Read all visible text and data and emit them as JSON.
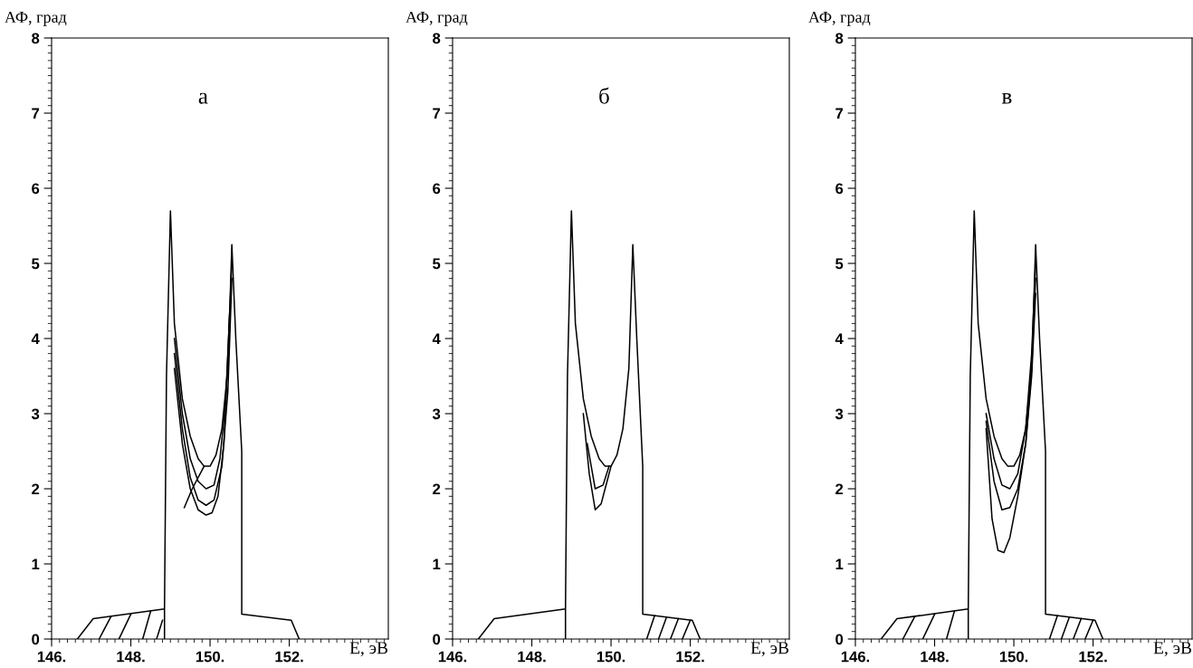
{
  "chart_data": [
    {
      "type": "line",
      "title": "а",
      "xlabel": "E, эВ",
      "ylabel": "АФ, град",
      "xlim": [
        146,
        154.5
      ],
      "ylim": [
        0,
        8
      ],
      "xticks": [
        {
          "value": 146,
          "label": "146."
        },
        {
          "value": 148,
          "label": "148."
        },
        {
          "value": 150,
          "label": "150."
        },
        {
          "value": 152,
          "label": "152."
        }
      ],
      "yticks": [
        0,
        1,
        2,
        3,
        4,
        5,
        6,
        7,
        8
      ],
      "grid": false,
      "legend": false,
      "marker": "none",
      "line_style": "solid",
      "series": [
        {
          "color": "#000000",
          "x": [
            146.65,
            147.05,
            148.85,
            148.85,
            148.85,
            148.9,
            149.0,
            149.1,
            149.3,
            149.5,
            149.7,
            149.85,
            150.0,
            150.15,
            150.3,
            150.45,
            150.55,
            150.65,
            150.8,
            150.8,
            152.05,
            152.25
          ],
          "values": [
            0,
            0.27,
            0.4,
            0,
            0.4,
            3.5,
            5.7,
            4.2,
            3.2,
            2.7,
            2.4,
            2.3,
            2.3,
            2.45,
            2.8,
            3.6,
            5.25,
            4.0,
            2.5,
            0.33,
            0.25,
            0
          ]
        },
        {
          "color": "#000000",
          "x": [
            149.1,
            149.3,
            149.5,
            149.7,
            149.9,
            150.1,
            150.25,
            150.4,
            150.55
          ],
          "values": [
            4.0,
            3.0,
            2.4,
            2.1,
            2.0,
            2.05,
            2.4,
            3.2,
            5.0
          ]
        },
        {
          "color": "#000000",
          "x": [
            149.1,
            149.3,
            149.5,
            149.7,
            149.9,
            150.1,
            150.3,
            150.45,
            150.55
          ],
          "values": [
            3.8,
            2.8,
            2.15,
            1.85,
            1.78,
            1.85,
            2.3,
            3.3,
            4.8
          ]
        },
        {
          "color": "#000000",
          "x": [
            149.1,
            149.3,
            149.5,
            149.7,
            149.9,
            150.05,
            150.2,
            150.35,
            150.5
          ],
          "values": [
            3.6,
            2.6,
            2.0,
            1.72,
            1.65,
            1.68,
            1.9,
            2.6,
            4.4
          ]
        },
        {
          "color": "#000000",
          "x": [
            149.85,
            149.55,
            149.35
          ],
          "values": [
            2.3,
            2.0,
            1.75
          ]
        },
        {
          "color": "#000000",
          "x": [
            147.5,
            147.2
          ],
          "values": [
            0.3,
            0
          ]
        },
        {
          "color": "#000000",
          "x": [
            148.0,
            147.7
          ],
          "values": [
            0.33,
            0
          ]
        },
        {
          "color": "#000000",
          "x": [
            148.5,
            148.3
          ],
          "values": [
            0.37,
            0
          ]
        },
        {
          "color": "#000000",
          "x": [
            148.8,
            148.65
          ],
          "values": [
            0.25,
            0
          ]
        }
      ]
    },
    {
      "type": "line",
      "title": "б",
      "xlabel": "E, эВ",
      "ylabel": "АФ, град",
      "xlim": [
        146,
        154.5
      ],
      "ylim": [
        0,
        8
      ],
      "xticks": [
        {
          "value": 146,
          "label": "146."
        },
        {
          "value": 148,
          "label": "148."
        },
        {
          "value": 150,
          "label": "150."
        },
        {
          "value": 152,
          "label": "152."
        }
      ],
      "yticks": [
        0,
        1,
        2,
        3,
        4,
        5,
        6,
        7,
        8
      ],
      "grid": false,
      "legend": false,
      "marker": "none",
      "line_style": "solid",
      "series": [
        {
          "color": "#000000",
          "x": [
            146.65,
            147.05,
            148.85,
            148.85,
            148.85,
            148.9,
            149.0,
            149.1,
            149.3,
            149.5,
            149.7,
            149.85,
            150.0,
            150.15,
            150.3,
            150.45,
            150.55,
            150.65,
            150.8,
            150.8,
            152.05,
            152.25
          ],
          "values": [
            0,
            0.27,
            0.4,
            0,
            0.4,
            3.5,
            5.7,
            4.2,
            3.2,
            2.7,
            2.4,
            2.3,
            2.3,
            2.45,
            2.8,
            3.6,
            5.25,
            4.0,
            2.3,
            0.33,
            0.25,
            0
          ]
        },
        {
          "color": "#000000",
          "x": [
            149.3,
            149.45,
            149.6,
            149.75,
            149.9,
            150.0
          ],
          "values": [
            3.0,
            2.2,
            1.72,
            1.8,
            2.1,
            2.3
          ]
        },
        {
          "color": "#000000",
          "x": [
            149.4,
            149.6,
            149.8,
            149.95
          ],
          "values": [
            2.6,
            2.0,
            2.05,
            2.3
          ]
        },
        {
          "color": "#000000",
          "x": [
            151.1,
            150.9
          ],
          "values": [
            0.31,
            0
          ]
        },
        {
          "color": "#000000",
          "x": [
            151.4,
            151.2
          ],
          "values": [
            0.29,
            0
          ]
        },
        {
          "color": "#000000",
          "x": [
            151.7,
            151.5
          ],
          "values": [
            0.27,
            0
          ]
        },
        {
          "color": "#000000",
          "x": [
            152.0,
            151.8
          ],
          "values": [
            0.25,
            0
          ]
        }
      ]
    },
    {
      "type": "line",
      "title": "в",
      "xlabel": "E, эВ",
      "ylabel": "АФ, град",
      "xlim": [
        146,
        154.5
      ],
      "ylim": [
        0,
        8
      ],
      "xticks": [
        {
          "value": 146,
          "label": "146."
        },
        {
          "value": 148,
          "label": "148."
        },
        {
          "value": 150,
          "label": "150."
        },
        {
          "value": 152,
          "label": "152."
        }
      ],
      "yticks": [
        0,
        1,
        2,
        3,
        4,
        5,
        6,
        7,
        8
      ],
      "grid": false,
      "legend": false,
      "marker": "none",
      "line_style": "solid",
      "series": [
        {
          "color": "#000000",
          "x": [
            146.65,
            147.05,
            148.85,
            148.85,
            148.85,
            148.9,
            149.0,
            149.1,
            149.3,
            149.5,
            149.7,
            149.85,
            150.0,
            150.15,
            150.3,
            150.45,
            150.55,
            150.65,
            150.8,
            150.8,
            152.05,
            152.25
          ],
          "values": [
            0,
            0.27,
            0.4,
            0,
            0.4,
            3.5,
            5.7,
            4.2,
            3.2,
            2.7,
            2.4,
            2.3,
            2.3,
            2.45,
            2.8,
            3.6,
            5.25,
            4.0,
            2.5,
            0.33,
            0.25,
            0
          ]
        },
        {
          "color": "#000000",
          "x": [
            149.3,
            149.5,
            149.7,
            149.9,
            150.1,
            150.3,
            150.45,
            150.55
          ],
          "values": [
            3.0,
            2.4,
            2.05,
            2.0,
            2.2,
            2.8,
            3.8,
            5.0
          ]
        },
        {
          "color": "#000000",
          "x": [
            149.3,
            149.5,
            149.7,
            149.9,
            150.1,
            150.3,
            150.45,
            150.55
          ],
          "values": [
            2.9,
            2.1,
            1.72,
            1.75,
            2.0,
            2.6,
            3.6,
            4.8
          ]
        },
        {
          "color": "#000000",
          "x": [
            149.3,
            149.45,
            149.6,
            149.75,
            149.9,
            150.1,
            150.3,
            150.45,
            150.55
          ],
          "values": [
            2.8,
            1.6,
            1.18,
            1.15,
            1.35,
            1.9,
            2.6,
            3.5,
            4.6
          ]
        },
        {
          "color": "#000000",
          "x": [
            147.5,
            147.2
          ],
          "values": [
            0.3,
            0
          ]
        },
        {
          "color": "#000000",
          "x": [
            148.0,
            147.7
          ],
          "values": [
            0.33,
            0
          ]
        },
        {
          "color": "#000000",
          "x": [
            148.5,
            148.3
          ],
          "values": [
            0.37,
            0
          ]
        },
        {
          "color": "#000000",
          "x": [
            151.1,
            150.9
          ],
          "values": [
            0.31,
            0
          ]
        },
        {
          "color": "#000000",
          "x": [
            151.4,
            151.2
          ],
          "values": [
            0.29,
            0
          ]
        },
        {
          "color": "#000000",
          "x": [
            151.7,
            151.5
          ],
          "values": [
            0.27,
            0
          ]
        },
        {
          "color": "#000000",
          "x": [
            152.0,
            151.8
          ],
          "values": [
            0.25,
            0
          ]
        }
      ]
    }
  ]
}
